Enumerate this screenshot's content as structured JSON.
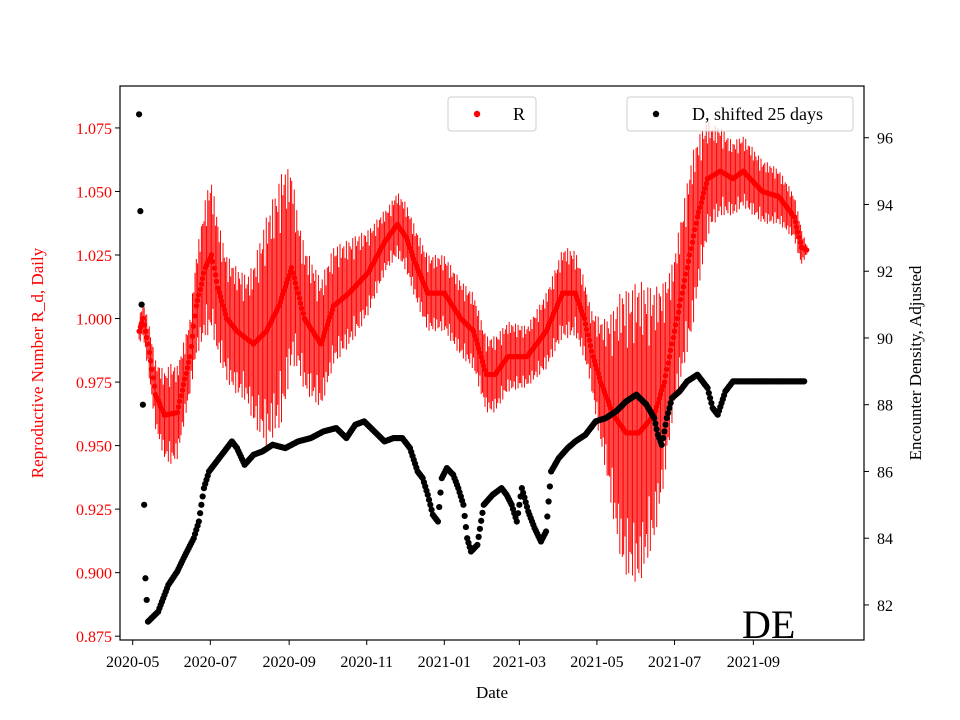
{
  "chart_data": {
    "type": "scatter",
    "xlabel": "Date",
    "ylabel_left": "Reproductive Number R_d, Daily",
    "ylabel_right": "Encounter Density, Adjusted",
    "region_label": "DE",
    "x_range": [
      -10,
      575
    ],
    "x_tick_labels": [
      "2020-05",
      "2020-07",
      "2020-09",
      "2020-11",
      "2021-01",
      "2021-03",
      "2021-05",
      "2021-07",
      "2021-09"
    ],
    "x_tick_days": [
      0,
      61,
      123,
      184,
      245,
      304,
      365,
      426,
      488
    ],
    "y_left_range": [
      0.8735,
      1.0915
    ],
    "y_left_ticks": [
      "0.875",
      "0.900",
      "0.925",
      "0.950",
      "0.975",
      "1.000",
      "1.025",
      "1.050",
      "1.075"
    ],
    "y_left_tick_values": [
      0.875,
      0.9,
      0.925,
      0.95,
      0.975,
      1.0,
      1.025,
      1.05,
      1.075
    ],
    "y_right_range": [
      80.95,
      97.55
    ],
    "y_right_ticks": [
      "82",
      "84",
      "86",
      "88",
      "90",
      "92",
      "94",
      "96"
    ],
    "y_right_tick_values": [
      82,
      84,
      86,
      88,
      90,
      92,
      94,
      96
    ],
    "colors": {
      "R": "#ff0000",
      "D": "#000000",
      "axis_left": "#ff0000",
      "axis_right": "#000000"
    },
    "series": [
      {
        "name": "R",
        "color": "#ff0000",
        "axis": "left",
        "legend": "R",
        "start_day": 5,
        "end_day": 530,
        "knots": [
          [
            5,
            0.995
          ],
          [
            8,
            1.0
          ],
          [
            12,
            0.99
          ],
          [
            18,
            0.97
          ],
          [
            25,
            0.962
          ],
          [
            35,
            0.963
          ],
          [
            45,
            0.985
          ],
          [
            50,
            1.005
          ],
          [
            57,
            1.02
          ],
          [
            62,
            1.025
          ],
          [
            67,
            1.012
          ],
          [
            74,
            1.0
          ],
          [
            82,
            0.995
          ],
          [
            95,
            0.99
          ],
          [
            105,
            0.995
          ],
          [
            115,
            1.005
          ],
          [
            125,
            1.02
          ],
          [
            135,
            1.0
          ],
          [
            148,
            0.99
          ],
          [
            158,
            1.005
          ],
          [
            170,
            1.01
          ],
          [
            185,
            1.018
          ],
          [
            198,
            1.03
          ],
          [
            208,
            1.037
          ],
          [
            215,
            1.032
          ],
          [
            222,
            1.022
          ],
          [
            232,
            1.01
          ],
          [
            245,
            1.01
          ],
          [
            258,
            1.0
          ],
          [
            268,
            0.995
          ],
          [
            278,
            0.978
          ],
          [
            285,
            0.978
          ],
          [
            295,
            0.985
          ],
          [
            310,
            0.985
          ],
          [
            325,
            0.995
          ],
          [
            338,
            1.01
          ],
          [
            348,
            1.01
          ],
          [
            355,
            1.0
          ],
          [
            362,
            0.985
          ],
          [
            368,
            0.975
          ],
          [
            378,
            0.962
          ],
          [
            388,
            0.955
          ],
          [
            398,
            0.955
          ],
          [
            410,
            0.962
          ],
          [
            418,
            0.975
          ],
          [
            428,
            1.0
          ],
          [
            436,
            1.02
          ],
          [
            444,
            1.04
          ],
          [
            452,
            1.055
          ],
          [
            462,
            1.058
          ],
          [
            472,
            1.055
          ],
          [
            480,
            1.058
          ],
          [
            495,
            1.05
          ],
          [
            508,
            1.048
          ],
          [
            520,
            1.04
          ],
          [
            526,
            1.028
          ],
          [
            530,
            1.027
          ]
        ],
        "spread": [
          [
            5,
            0.005
          ],
          [
            15,
            0.012
          ],
          [
            30,
            0.02
          ],
          [
            45,
            0.015
          ],
          [
            60,
            0.03
          ],
          [
            72,
            0.025
          ],
          [
            90,
            0.025
          ],
          [
            105,
            0.045
          ],
          [
            118,
            0.05
          ],
          [
            130,
            0.03
          ],
          [
            150,
            0.025
          ],
          [
            175,
            0.02
          ],
          [
            200,
            0.012
          ],
          [
            230,
            0.015
          ],
          [
            262,
            0.015
          ],
          [
            285,
            0.015
          ],
          [
            310,
            0.012
          ],
          [
            340,
            0.018
          ],
          [
            360,
            0.015
          ],
          [
            372,
            0.03
          ],
          [
            385,
            0.055
          ],
          [
            398,
            0.06
          ],
          [
            410,
            0.05
          ],
          [
            425,
            0.03
          ],
          [
            440,
            0.035
          ],
          [
            455,
            0.02
          ],
          [
            470,
            0.015
          ],
          [
            500,
            0.012
          ],
          [
            525,
            0.008
          ],
          [
            530,
            0.002
          ]
        ]
      },
      {
        "name": "D, shifted 25 days",
        "color": "#000000",
        "axis": "right",
        "legend": "D, shifted 25 days",
        "start_day": 5,
        "end_day": 528,
        "knots": [
          [
            5,
            96.7
          ],
          [
            6,
            93.8
          ],
          [
            7,
            91.0
          ],
          [
            8,
            88.0
          ],
          [
            9,
            85.0
          ],
          [
            10,
            82.8
          ],
          [
            12,
            81.5
          ],
          [
            20,
            81.8
          ],
          [
            28,
            82.6
          ],
          [
            35,
            83.0
          ],
          [
            40,
            83.4
          ],
          [
            48,
            84.0
          ],
          [
            52,
            84.5
          ],
          [
            56,
            85.5
          ],
          [
            60,
            86.0
          ],
          [
            66,
            86.3
          ],
          [
            72,
            86.6
          ],
          [
            78,
            86.9
          ],
          [
            82,
            86.7
          ],
          [
            88,
            86.2
          ],
          [
            95,
            86.5
          ],
          [
            102,
            86.6
          ],
          [
            110,
            86.8
          ],
          [
            120,
            86.7
          ],
          [
            130,
            86.9
          ],
          [
            140,
            87.0
          ],
          [
            150,
            87.2
          ],
          [
            160,
            87.3
          ],
          [
            168,
            87.0
          ],
          [
            175,
            87.4
          ],
          [
            182,
            87.5
          ],
          [
            190,
            87.2
          ],
          [
            198,
            86.9
          ],
          [
            205,
            87.0
          ],
          [
            212,
            87.0
          ],
          [
            218,
            86.7
          ],
          [
            224,
            86.0
          ],
          [
            228,
            85.8
          ],
          [
            232,
            85.3
          ],
          [
            236,
            84.7
          ],
          [
            240,
            84.5
          ],
          [
            243,
            85.8
          ],
          [
            247,
            86.1
          ],
          [
            252,
            85.9
          ],
          [
            256,
            85.5
          ],
          [
            260,
            85.0
          ],
          [
            263,
            84.0
          ],
          [
            266,
            83.6
          ],
          [
            271,
            83.8
          ],
          [
            276,
            85.0
          ],
          [
            283,
            85.3
          ],
          [
            290,
            85.5
          ],
          [
            294,
            85.3
          ],
          [
            298,
            85.0
          ],
          [
            302,
            84.5
          ],
          [
            306,
            85.5
          ],
          [
            311,
            84.8
          ],
          [
            316,
            84.3
          ],
          [
            321,
            83.9
          ],
          [
            325,
            84.2
          ],
          [
            329,
            86.0
          ],
          [
            335,
            86.4
          ],
          [
            342,
            86.7
          ],
          [
            348,
            86.9
          ],
          [
            356,
            87.1
          ],
          [
            364,
            87.5
          ],
          [
            372,
            87.6
          ],
          [
            380,
            87.8
          ],
          [
            388,
            88.1
          ],
          [
            396,
            88.3
          ],
          [
            404,
            88.0
          ],
          [
            410,
            87.6
          ],
          [
            413,
            87.1
          ],
          [
            416,
            86.8
          ],
          [
            420,
            87.6
          ],
          [
            424,
            88.2
          ],
          [
            430,
            88.4
          ],
          [
            436,
            88.7
          ],
          [
            444,
            88.9
          ],
          [
            452,
            88.5
          ],
          [
            456,
            87.9
          ],
          [
            460,
            87.7
          ],
          [
            466,
            88.4
          ],
          [
            472,
            88.7
          ],
          [
            480,
            88.7
          ],
          [
            528,
            88.7
          ]
        ]
      }
    ]
  }
}
